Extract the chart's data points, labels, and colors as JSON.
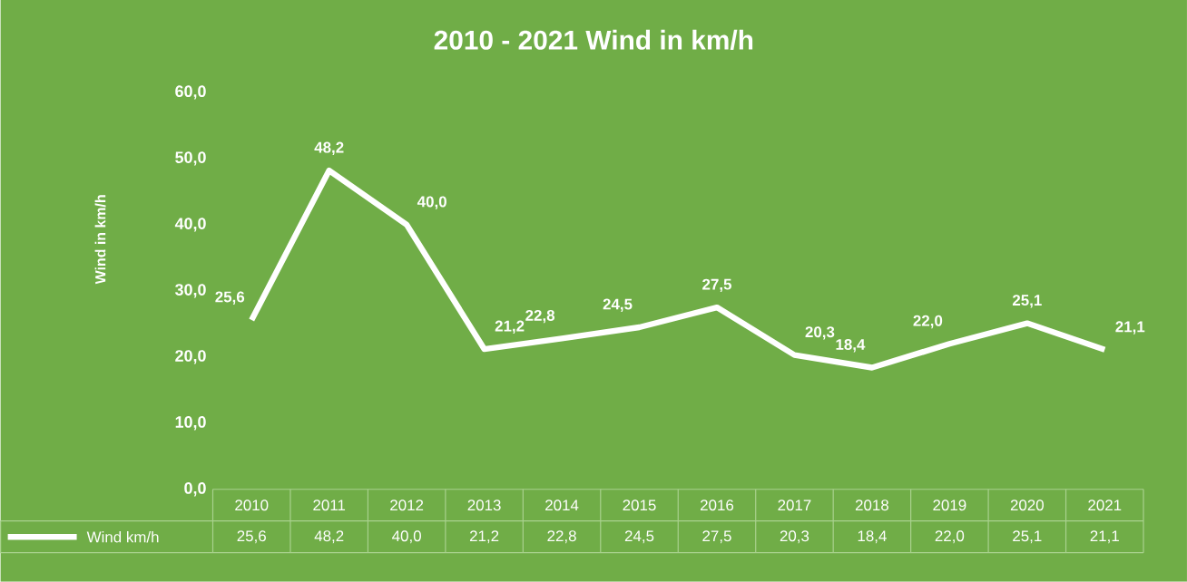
{
  "chart_data": {
    "type": "line",
    "title": "2010 - 2021  Wind in km/h",
    "ylabel": "Wind in km/h",
    "categories": [
      "2010",
      "2011",
      "2012",
      "2013",
      "2014",
      "2015",
      "2016",
      "2017",
      "2018",
      "2019",
      "2020",
      "2021"
    ],
    "series": [
      {
        "name": "Wind km/h",
        "color": "#ffffff",
        "values": [
          25.6,
          48.2,
          40.0,
          21.2,
          22.8,
          24.5,
          27.5,
          20.3,
          18.4,
          22.0,
          25.1,
          21.1
        ],
        "value_labels": [
          "25,6",
          "48,2",
          "40,0",
          "21,2",
          "22,8",
          "24,5",
          "27,5",
          "20,3",
          "18,4",
          "22,0",
          "25,1",
          "21,1"
        ]
      }
    ],
    "ylim": [
      0,
      60
    ],
    "yticks": [
      {
        "value": 0,
        "label": "0,0"
      },
      {
        "value": 10,
        "label": "10,0"
      },
      {
        "value": 20,
        "label": "20,0"
      },
      {
        "value": 30,
        "label": "30,0"
      },
      {
        "value": 40,
        "label": "40,0"
      },
      {
        "value": 50,
        "label": "50,0"
      },
      {
        "value": 60,
        "label": "60,0"
      }
    ],
    "grid": false,
    "legend": "bottom",
    "marker": "none",
    "line_style": "solid"
  }
}
